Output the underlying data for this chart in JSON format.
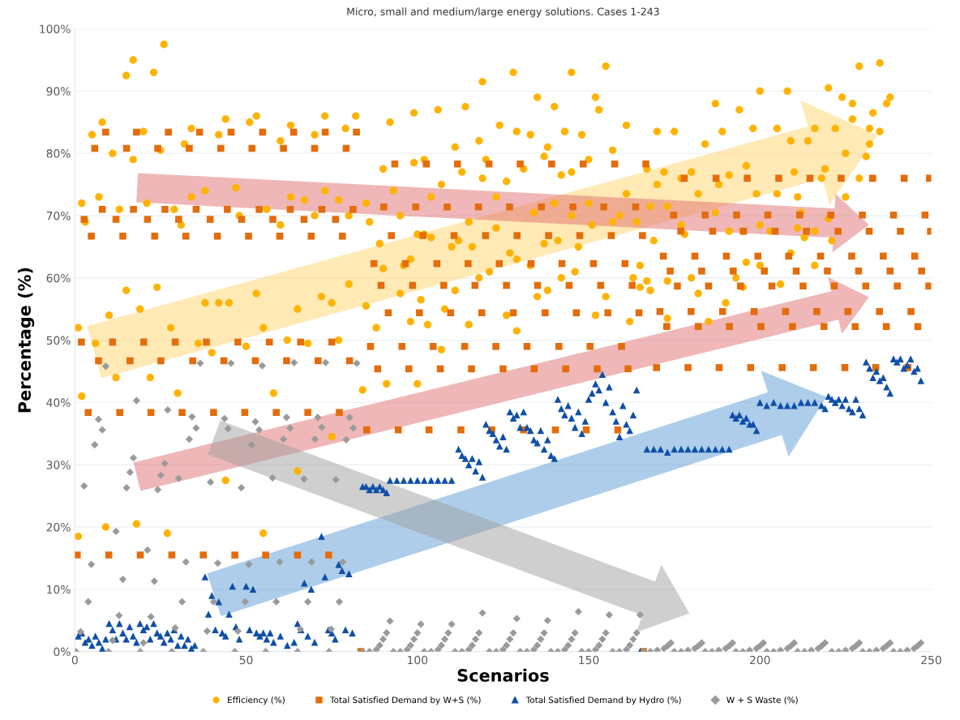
{
  "chart_data": {
    "type": "scatter",
    "title": "Micro, small and medium/large energy solutions. Cases 1-243",
    "xlabel": "Scenarios",
    "ylabel": "Percentage (%)",
    "xlim": [
      0,
      250
    ],
    "xticks": [
      0,
      50,
      100,
      150,
      200,
      250
    ],
    "ylim": [
      0,
      100
    ],
    "yticks": [
      {
        "value": 0,
        "label": "0%"
      },
      {
        "value": 10,
        "label": "10%"
      },
      {
        "value": 20,
        "label": "20%"
      },
      {
        "value": 30,
        "label": "30%"
      },
      {
        "value": 40,
        "label": "40%"
      },
      {
        "value": 50,
        "label": "50%"
      },
      {
        "value": 60,
        "label": "60%"
      },
      {
        "value": 70,
        "label": "70%"
      },
      {
        "value": 80,
        "label": "80%"
      },
      {
        "value": 90,
        "label": "90%"
      },
      {
        "value": 100,
        "label": "100%"
      }
    ],
    "grid": "y",
    "legend": "bottom",
    "series": [
      {
        "name": "Efficiency (%)",
        "color": "#ffb300",
        "marker": "circle",
        "x": [
          1,
          1,
          2,
          2,
          3,
          5,
          6,
          7,
          8,
          9,
          10,
          11,
          12,
          13,
          15,
          15,
          17,
          17,
          18,
          19,
          20,
          21,
          22,
          23,
          24,
          25,
          26,
          27,
          28,
          29,
          30,
          31,
          32,
          34,
          34,
          36,
          38,
          38,
          40,
          42,
          42,
          44,
          44,
          45,
          47,
          48,
          50,
          51,
          53,
          53,
          55,
          55,
          56,
          58,
          60,
          60,
          62,
          63,
          63,
          65,
          65,
          67,
          68,
          70,
          70,
          72,
          73,
          73,
          75,
          75,
          77,
          77,
          79,
          80,
          80,
          82,
          84,
          85,
          85,
          86,
          88,
          89,
          90,
          90,
          91,
          92,
          93,
          95,
          95,
          96,
          98,
          98,
          99,
          99,
          100,
          100,
          101,
          102,
          102,
          103,
          104,
          104,
          106,
          107,
          107,
          108,
          110,
          111,
          111,
          112,
          113,
          114,
          115,
          115,
          116,
          118,
          118,
          119,
          119,
          120,
          121,
          123,
          123,
          124,
          126,
          126,
          127,
          128,
          129,
          129,
          129,
          131,
          133,
          133,
          134,
          135,
          135,
          137,
          137,
          138,
          138,
          140,
          140,
          141,
          142,
          142,
          143,
          145,
          145,
          145,
          146,
          147,
          148,
          150,
          150,
          151,
          152,
          152,
          153,
          155,
          155,
          157,
          157,
          159,
          161,
          161,
          162,
          163,
          164,
          165,
          165,
          167,
          167,
          168,
          168,
          169,
          170,
          170,
          172,
          173,
          173,
          173,
          175,
          177,
          177,
          178,
          180,
          180,
          182,
          182,
          184,
          185,
          187,
          187,
          188,
          189,
          190,
          191,
          191,
          193,
          194,
          195,
          195,
          196,
          196,
          198,
          199,
          200,
          200,
          200,
          203,
          205,
          205,
          206,
          208,
          209,
          209,
          210,
          211,
          211,
          212,
          213,
          214,
          216,
          216,
          216,
          218,
          219,
          220,
          220,
          221,
          222,
          224,
          225,
          225,
          227,
          227,
          229,
          229,
          231,
          232,
          232,
          233,
          235,
          235,
          237,
          238
        ],
        "values": [
          52,
          18.5,
          72,
          41,
          69,
          83,
          49.5,
          73,
          85,
          20,
          54,
          80,
          44,
          71,
          92.5,
          58,
          95,
          79,
          20.5,
          55,
          83.5,
          72,
          44,
          93,
          58.5,
          80.5,
          97.5,
          19,
          52,
          71,
          41.5,
          68.5,
          81.5,
          73,
          84,
          49.5,
          56,
          74,
          48,
          83,
          56,
          85.5,
          27.5,
          56,
          74.5,
          70,
          49,
          85,
          57.5,
          86,
          19,
          52,
          71,
          41.5,
          68.5,
          82,
          50,
          73,
          84.5,
          29,
          55,
          72.5,
          49.5,
          83,
          70,
          57,
          74,
          86,
          34.5,
          56,
          72.5,
          50,
          84,
          59,
          70,
          86,
          42,
          72,
          55.5,
          69,
          52,
          65.5,
          77.5,
          61.5,
          43,
          85,
          74,
          57.5,
          70,
          62,
          63,
          53,
          86.5,
          78.5,
          43,
          67,
          56.5,
          67,
          79,
          52.5,
          66.5,
          73,
          87,
          48.5,
          75,
          55,
          65,
          81,
          58,
          66,
          77,
          87.5,
          52.5,
          69,
          65,
          82,
          60,
          91.5,
          76,
          79,
          61,
          73,
          68,
          84.5,
          75.5,
          54,
          64,
          93,
          83.5,
          51.5,
          63,
          77.5,
          83,
          62,
          70.5,
          89,
          57,
          79.5,
          65.5,
          81,
          58,
          72,
          87.5,
          66,
          76.5,
          60,
          83.5,
          93,
          77,
          70,
          61,
          65,
          83,
          72,
          79,
          68.5,
          89,
          54,
          87,
          94,
          57,
          80.5,
          69,
          70,
          84.5,
          73.5,
          53,
          60,
          69,
          62,
          58.5,
          77.5,
          59.5,
          71.5,
          58,
          66,
          83.5,
          75,
          77,
          71.5,
          59.5,
          53.5,
          83.5,
          76,
          68.5,
          67,
          77,
          60,
          73.5,
          57.5,
          81.5,
          53,
          70.5,
          88,
          75,
          83.5,
          56,
          76.5,
          67.5,
          60,
          87,
          67.5,
          58.5,
          78,
          62.5,
          84,
          73.5,
          90,
          68.5,
          62,
          67.5,
          84,
          73.5,
          59,
          90,
          82,
          64,
          77,
          68,
          73,
          70.5,
          66.5,
          82,
          84,
          67.5,
          62,
          76,
          77.5,
          90.5,
          69.5,
          66,
          84,
          89,
          80,
          73,
          85.5,
          88,
          76,
          94,
          79.5,
          84,
          81.5,
          86.5,
          94.5,
          83.5,
          88,
          89
        ]
      },
      {
        "name": "Total Satisfied Demand by W+S (%)",
        "color": "#e46c0a",
        "marker": "square",
        "x": [
          9,
          18,
          27.3,
          36.4,
          45.6,
          54.8,
          63.9,
          73.1,
          82.2,
          5.8,
          15.1,
          24.2,
          33.4,
          42.6,
          51.7,
          60.9,
          70,
          79.2,
          8,
          17.1,
          26.3,
          35.4,
          44.5,
          53.8,
          62.9,
          72.1,
          81.2,
          2.7,
          12,
          21.2,
          30.3,
          39.5,
          48.7,
          57.8,
          66.9,
          76.1,
          4.8,
          14,
          23.3,
          32.4,
          41.6,
          50.7,
          59.8,
          69,
          78.1,
          1.9,
          11,
          20.1,
          29.3,
          38.4,
          47.6,
          56.8,
          65.9,
          75,
          6.9,
          16.1,
          25.1,
          34.4,
          43.5,
          52.7,
          61.8,
          71,
          80.2,
          3.9,
          13.1,
          22.2,
          31.3,
          40.5,
          49.6,
          58.8,
          68,
          77.2,
          0.7,
          9.9,
          19.1,
          28.3,
          37.5,
          46.7,
          55.7,
          65,
          74.1,
          83.5,
          93.4,
          102.6,
          111.7,
          120.9,
          130,
          139.2,
          148.4,
          157.6,
          166.7,
          90.2,
          99.5,
          108.7,
          117.8,
          126.9,
          136.2,
          145.4,
          154.4,
          163.7,
          92.4,
          101.6,
          110.7,
          119.9,
          129.1,
          138.3,
          147.4,
          156.6,
          165.7,
          87.3,
          96.5,
          105.7,
          114.8,
          123.9,
          133.2,
          142.2,
          151.4,
          160.6,
          89.4,
          98.6,
          107.7,
          116.8,
          126,
          135.1,
          144.3,
          153.5,
          162.7,
          91.5,
          100.6,
          109.7,
          118.8,
          128,
          137.3,
          146.4,
          155.6,
          164.7,
          86.3,
          95.5,
          104.6,
          113.8,
          122.9,
          132,
          141.3,
          150.4,
          159.6,
          88.4,
          97.5,
          106.7,
          115.8,
          125,
          134.1,
          143.3,
          152.5,
          161.5,
          85.2,
          94.4,
          103.4,
          112.7,
          121.7,
          131,
          140.3,
          149.3,
          158.5,
          166,
          177.9,
          187.2,
          196.3,
          205.5,
          214.6,
          223.7,
          232.9,
          242.1,
          249.5,
          174.8,
          184,
          193.2,
          202.3,
          211.6,
          220.7,
          229.9,
          239,
          248.2,
          176.9,
          186.2,
          195.2,
          204.4,
          213.6,
          222.8,
          231.9,
          241,
          249.8,
          171.8,
          181,
          190.2,
          199.4,
          208.4,
          217.7,
          226.8,
          236,
          245.2,
          173.8,
          183,
          192.2,
          201.3,
          210.6,
          219.7,
          228.8,
          238,
          247.2,
          175.9,
          185,
          194.3,
          203.5,
          212.6,
          221.7,
          230.9,
          240.1,
          249.3,
          170.8,
          179.9,
          189.1,
          198.3,
          207.5,
          216.6,
          225.7,
          234.9,
          244.1,
          172.8,
          182,
          191.1,
          200.3,
          209.5,
          218.7,
          227.8,
          236.9,
          246.1,
          169.8,
          179,
          188.1,
          197.3,
          206.5,
          215.6,
          224.8,
          233.8,
          243.2
        ],
        "values": [
          83.4,
          83.4,
          83.4,
          83.4,
          83.4,
          83.4,
          83.4,
          83.4,
          83.4,
          80.8,
          80.8,
          80.8,
          80.8,
          80.8,
          80.8,
          80.8,
          80.8,
          80.8,
          71,
          71,
          71,
          71,
          71,
          71,
          71,
          71,
          71,
          69.4,
          69.4,
          69.4,
          69.4,
          69.4,
          69.4,
          69.4,
          69.4,
          69.4,
          66.7,
          66.7,
          66.7,
          66.7,
          66.7,
          66.7,
          66.7,
          66.7,
          66.7,
          49.7,
          49.7,
          49.7,
          49.7,
          49.7,
          49.7,
          49.7,
          49.7,
          49.7,
          46.7,
          46.7,
          46.7,
          46.7,
          46.7,
          46.7,
          46.7,
          46.7,
          46.7,
          38.4,
          38.4,
          38.4,
          38.4,
          38.4,
          38.4,
          38.4,
          38.4,
          38.4,
          15.5,
          15.5,
          15.5,
          15.5,
          15.5,
          15.5,
          15.5,
          15.5,
          15.5,
          0,
          78.3,
          78.3,
          78.3,
          78.3,
          78.3,
          78.3,
          78.3,
          78.3,
          78.3,
          71.4,
          71.4,
          71.4,
          71.4,
          71.4,
          71.4,
          71.4,
          71.4,
          71.4,
          66.8,
          66.8,
          66.8,
          66.8,
          66.8,
          66.8,
          66.8,
          66.8,
          66.8,
          62.3,
          62.3,
          62.3,
          62.3,
          62.3,
          62.3,
          62.3,
          62.3,
          62.3,
          58.8,
          58.8,
          58.8,
          58.8,
          58.8,
          58.8,
          58.8,
          58.8,
          58.8,
          54.4,
          54.4,
          54.4,
          54.4,
          54.4,
          54.4,
          54.4,
          54.4,
          54.4,
          49,
          49,
          49,
          49,
          49,
          49,
          49,
          49,
          49,
          45.4,
          45.4,
          45.4,
          45.4,
          45.4,
          45.4,
          45.4,
          45.4,
          45.4,
          35.6,
          35.6,
          35.6,
          35.6,
          35.6,
          35.6,
          35.6,
          35.6,
          35.6,
          0,
          76,
          76,
          76,
          76,
          76,
          76,
          76,
          76,
          76,
          70.1,
          70.1,
          70.1,
          70.1,
          70.1,
          70.1,
          70.1,
          70.1,
          70.1,
          67.5,
          67.5,
          67.5,
          67.5,
          67.5,
          67.5,
          67.5,
          67.5,
          67.5,
          63.5,
          63.5,
          63.5,
          63.5,
          63.5,
          63.5,
          63.5,
          63.5,
          63.5,
          61.1,
          61.1,
          61.1,
          61.1,
          61.1,
          61.1,
          61.1,
          61.1,
          61.1,
          58.7,
          58.7,
          58.7,
          58.7,
          58.7,
          58.7,
          58.7,
          58.7,
          58.7,
          54.6,
          54.6,
          54.6,
          54.6,
          54.6,
          54.6,
          54.6,
          54.6,
          54.6,
          52.2,
          52.2,
          52.2,
          52.2,
          52.2,
          52.2,
          52.2,
          52.2,
          52.2,
          45.6,
          45.6,
          45.6,
          45.6,
          45.6,
          45.6,
          45.6,
          45.6,
          45.6
        ]
      },
      {
        "name": "Total Satisfied Demand by Hydro (%)",
        "color": "#0e4fa8",
        "marker": "triangle",
        "x": [
          1,
          2,
          3,
          4,
          5,
          6,
          7,
          8,
          9,
          10,
          11,
          12,
          13,
          14,
          15,
          16,
          17,
          18,
          19,
          20,
          21,
          22,
          23,
          24,
          25,
          26,
          27,
          28,
          29,
          30,
          31,
          32,
          33,
          34,
          35,
          38,
          39,
          40,
          41,
          42,
          43,
          44,
          45,
          46,
          47,
          48,
          50,
          51,
          52,
          53,
          54,
          55,
          56,
          57,
          58,
          60,
          62,
          64,
          65,
          66,
          67,
          68,
          69,
          70,
          72,
          73,
          74,
          75,
          76,
          77,
          78,
          79,
          80,
          81,
          84,
          85,
          86,
          87,
          88,
          89,
          90,
          91,
          92,
          94,
          96,
          98,
          100,
          102,
          104,
          106,
          108,
          110,
          112,
          113,
          114,
          115,
          116,
          117,
          118,
          119,
          120,
          121,
          122,
          123,
          124,
          125,
          126,
          127,
          128,
          129,
          130,
          131,
          132,
          133,
          134,
          135,
          136,
          137,
          138,
          139,
          140,
          141,
          142,
          143,
          144,
          145,
          146,
          147,
          148,
          149,
          150,
          151,
          152,
          153,
          154,
          155,
          156,
          157,
          158,
          159,
          160,
          161,
          162,
          163,
          164,
          165,
          167,
          169,
          171,
          173,
          175,
          177,
          179,
          181,
          183,
          185,
          187,
          189,
          191,
          192,
          193,
          194,
          195,
          196,
          197,
          198,
          199,
          200,
          202,
          204,
          206,
          208,
          210,
          212,
          214,
          216,
          218,
          219,
          220,
          221,
          222,
          223,
          224,
          225,
          226,
          227,
          228,
          229,
          230,
          231,
          232,
          233,
          234,
          235,
          236,
          237,
          238,
          239,
          240,
          241,
          242,
          243,
          244,
          245,
          246,
          247
        ],
        "values": [
          2.5,
          3,
          1.5,
          2,
          1,
          2.5,
          1.5,
          0.5,
          2,
          4.5,
          3.5,
          2,
          4.5,
          3,
          2,
          4,
          2.5,
          1.5,
          4.5,
          3.5,
          4,
          2,
          4.5,
          3,
          2.5,
          1.5,
          3,
          2,
          3.5,
          1,
          2.5,
          1,
          2,
          0.5,
          1,
          12,
          6,
          9,
          3.5,
          8,
          3,
          2.5,
          6,
          10.5,
          4,
          2,
          10.5,
          3.5,
          10,
          3,
          2.5,
          3,
          2,
          3,
          1.5,
          2.5,
          1,
          1.5,
          4.5,
          3.5,
          11,
          2.5,
          10,
          1.5,
          18.5,
          12,
          3.5,
          3,
          2,
          14,
          13,
          3.5,
          12.5,
          3,
          26.5,
          26.5,
          26,
          26.5,
          26,
          26.5,
          26,
          25.5,
          27.5,
          27.5,
          27.5,
          27.5,
          27.5,
          27.5,
          27.5,
          27.5,
          27.5,
          27.5,
          32.5,
          31.5,
          31,
          30,
          31,
          29,
          30.5,
          28,
          36.5,
          35.5,
          35,
          34,
          33,
          34.5,
          32.5,
          38.5,
          37.5,
          38,
          36,
          38.5,
          36,
          35.5,
          34,
          33.5,
          35.5,
          32.5,
          34,
          31.5,
          31,
          40.5,
          39,
          38,
          39.5,
          37.5,
          36,
          38.5,
          35,
          37,
          40.5,
          41.5,
          43,
          42,
          44.5,
          40,
          42.5,
          38.5,
          37,
          34.5,
          39.5,
          36.5,
          35.5,
          38,
          42,
          0,
          32.5,
          32.5,
          32.5,
          32,
          32.5,
          32.5,
          32.5,
          32.5,
          32.5,
          32.5,
          32.5,
          32.5,
          32.5,
          38,
          37.5,
          38,
          37,
          37.5,
          36.5,
          36.5,
          35.5,
          40,
          39.5,
          40,
          39.5,
          39.5,
          39.5,
          40,
          40,
          40,
          39.5,
          39,
          41,
          40.5,
          40,
          40.5,
          39.5,
          40.5,
          39,
          38.5,
          40.5,
          39,
          38,
          46.5,
          45.5,
          44,
          45,
          43.5,
          44,
          42.5,
          41.5,
          47,
          46.5,
          47,
          45.5,
          46,
          47,
          45,
          45.5,
          43.5
        ]
      },
      {
        "name": "W + S Waste (%)",
        "color": "#9a9a9a",
        "marker": "diamond",
        "x": [
          9,
          36.6,
          45.6,
          54.7,
          64,
          73.2,
          82.3,
          18,
          27.1,
          6.9,
          8,
          5.8,
          34.2,
          35.4,
          33.4,
          43.7,
          44.7,
          52.7,
          53.8,
          51.6,
          61.8,
          62.8,
          60.9,
          70.9,
          72.1,
          70.1,
          80.2,
          81.3,
          79.2,
          17.1,
          16.1,
          15.1,
          2.7,
          26.2,
          25.1,
          24.2,
          30.3,
          39.6,
          48.6,
          57.7,
          66.9,
          76.2,
          12,
          21.2,
          4.8,
          14,
          23.2,
          32.4,
          41.7,
          50.8,
          59.8,
          69.1,
          78.2,
          3.9,
          31.3,
          40.5,
          49.7,
          58.8,
          68,
          77.2,
          12.9,
          22.2,
          29.3,
          1.7,
          11,
          20,
          38.6,
          47.6,
          65.8,
          74.8,
          0.3,
          9.8,
          19.1,
          28.3,
          37.5,
          46.7,
          55.7,
          65,
          74.2,
          84,
          86,
          88,
          89,
          90,
          91,
          92,
          93,
          95,
          97,
          98,
          99,
          100,
          101,
          102,
          104,
          106,
          107,
          108,
          109,
          110,
          111,
          113,
          115,
          116,
          117,
          118,
          119,
          121,
          123,
          125,
          126,
          127,
          128,
          129,
          130,
          132,
          134,
          135,
          136,
          137,
          138,
          139,
          141,
          143,
          144,
          145,
          146,
          147,
          148,
          150,
          152,
          153,
          154,
          155,
          156,
          157,
          159,
          161,
          162,
          163,
          164,
          165,
          166,
          168,
          170,
          172,
          173,
          174,
          175,
          177,
          179,
          181,
          182,
          183,
          184,
          186,
          188,
          190,
          191,
          192,
          193,
          195,
          197,
          199,
          200,
          201,
          202,
          204,
          206,
          208,
          209,
          210,
          211,
          213,
          215,
          217,
          218,
          219,
          221,
          223,
          225,
          227,
          228,
          229,
          230,
          232,
          234,
          236,
          237,
          238,
          239,
          241,
          243,
          245,
          246,
          247
        ],
        "values": [
          45.8,
          46.3,
          46.3,
          45.9,
          46.4,
          46.4,
          46.3,
          40.3,
          38.8,
          37.3,
          35.6,
          33.2,
          37.7,
          35.9,
          34.1,
          37.4,
          35.8,
          36.9,
          35.6,
          33.2,
          37.6,
          35.9,
          34.1,
          37.6,
          36,
          34.1,
          37.6,
          35.9,
          34,
          31.1,
          28.8,
          26.3,
          26.6,
          30.2,
          28.3,
          26,
          27.8,
          27.2,
          26.3,
          27.9,
          27.7,
          27.6,
          19.3,
          16.3,
          14,
          11.6,
          11.3,
          14.4,
          14.2,
          14,
          14.4,
          14.4,
          14.4,
          8,
          8,
          8,
          8,
          8,
          8,
          8,
          5.8,
          5.6,
          3.8,
          3.2,
          1.8,
          1.4,
          3.3,
          3.3,
          3.6,
          3.6,
          0,
          0,
          0,
          0,
          0,
          0,
          0,
          0,
          0,
          0,
          0,
          0.3,
          1,
          2,
          3,
          4.9,
          0,
          0,
          0.3,
          1,
          2,
          3,
          4.4,
          0,
          0,
          0.3,
          1,
          2,
          3,
          4.4,
          0,
          0,
          0.3,
          1,
          2,
          3,
          6.2,
          0,
          0,
          0.3,
          1,
          2,
          3,
          5.3,
          0,
          0,
          0.3,
          1,
          2,
          3,
          5,
          0,
          0,
          0.3,
          1,
          2,
          3,
          6.4,
          0,
          0,
          0.3,
          1,
          2,
          3,
          5.9,
          0,
          0,
          0.3,
          1,
          2,
          3,
          5.9,
          0,
          0,
          0.2,
          0.5,
          0.9,
          1.4,
          0,
          0,
          0.2,
          0.5,
          0.9,
          1.4,
          0,
          0,
          0.2,
          0.5,
          0.9,
          1.4,
          0,
          0,
          0.2,
          0.5,
          0.9,
          1.4,
          0,
          0,
          0.2,
          0.5,
          0.9,
          1.4,
          0,
          0,
          0.2,
          0.5,
          0.9,
          1.4,
          0,
          0,
          0.2,
          0.5,
          0.9,
          1.4,
          0,
          0,
          0.2,
          0.5,
          0.9,
          1.4,
          0,
          0,
          0.2,
          0.5,
          0.9,
          1.4
        ]
      }
    ]
  }
}
